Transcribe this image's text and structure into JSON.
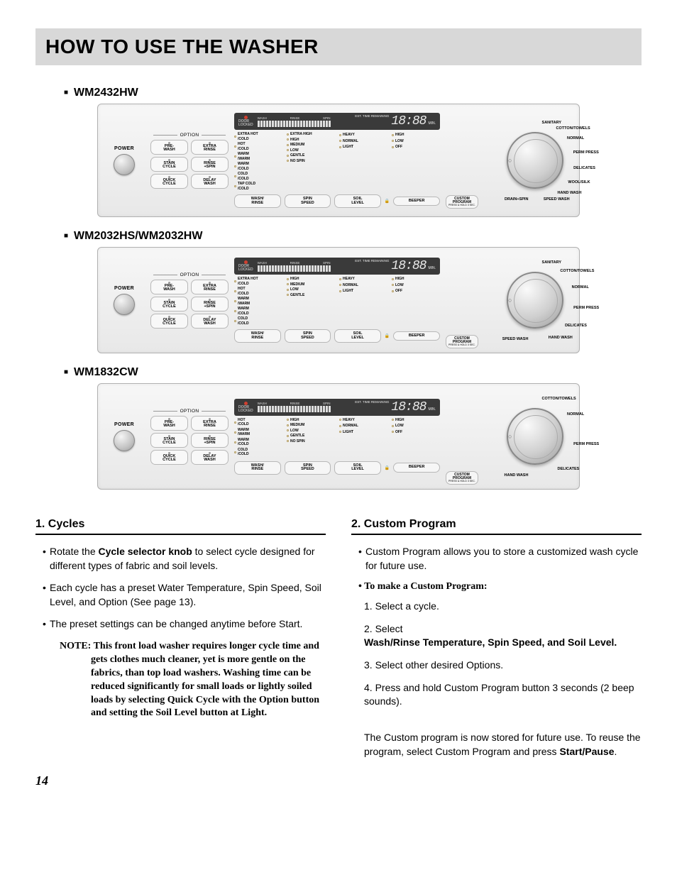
{
  "page": {
    "title": "HOW TO USE THE WASHER",
    "number": "14"
  },
  "models": [
    {
      "id": "m1",
      "name": "WM2432HW",
      "power": "POWER",
      "option_header": "OPTION",
      "options": [
        [
          "PRE-\nWASH",
          "EXTRA\nRINSE"
        ],
        [
          "STAIN\nCYCLE",
          "RINSE\n+SPIN"
        ],
        [
          "QUICK\nCYCLE",
          "DELAY\nWASH"
        ]
      ],
      "door_locked": "DOOR\nLOCKED",
      "progress": [
        "WASH",
        "RINSE",
        "SPIN"
      ],
      "display": {
        "est": "EST. TIME REMAINING",
        "digits": "18:88",
        "min": "MIN."
      },
      "temps": [
        "EXTRA HOT\n/COLD",
        "HOT\n/COLD",
        "WARM\n/WARM",
        "WARM\n/COLD",
        "COLD\n/COLD",
        "TAP COLD\n/COLD"
      ],
      "spin": [
        "EXTRA HIGH",
        "HIGH",
        "MEDIUM",
        "LOW",
        "GENTLE",
        "NO SPIN"
      ],
      "soil": [
        "",
        "HEAVY",
        "",
        "NORMAL",
        "",
        "LIGHT"
      ],
      "beep": [
        "",
        "HIGH",
        "",
        "LOW",
        "",
        "OFF"
      ],
      "btn_row": [
        "WASH/\nRINSE",
        "SPIN\nSPEED",
        "SOIL\nLEVEL",
        "BEEPER"
      ],
      "cycles": [
        "SANITARY",
        "COTTON/TOWELS",
        "NORMAL",
        "PERM PRESS",
        "DELICATES",
        "WOOL/SILK",
        "HAND WASH",
        "SPEED WASH",
        "DRAIN+SPIN"
      ],
      "custom": "CUSTOM\nPROGRAM"
    },
    {
      "id": "m2",
      "name": "WM2032HS/WM2032HW",
      "power": "POWER",
      "option_header": "OPTION",
      "options": [
        [
          "PRE-\nWASH",
          "EXTRA\nRINSE"
        ],
        [
          "STAIN\nCYCLE",
          "RINSE\n+SPIN"
        ],
        [
          "QUICK\nCYCLE",
          "DELAY\nWASH"
        ]
      ],
      "door_locked": "DOOR\nLOCKED",
      "progress": [
        "WASH",
        "RINSE",
        "SPIN"
      ],
      "display": {
        "est": "EST. TIME REMAINING",
        "digits": "18:88",
        "min": "MIN."
      },
      "temps": [
        "EXTRA HOT\n/COLD",
        "HOT\n/COLD",
        "WARM\n/WARM",
        "WARM\n/COLD",
        "COLD\n/COLD"
      ],
      "spin": [
        "HIGH",
        "MEDIUM",
        "LOW",
        "GENTLE",
        ""
      ],
      "soil": [
        "HEAVY",
        "",
        "NORMAL",
        "",
        "LIGHT"
      ],
      "beep": [
        "HIGH",
        "",
        "LOW",
        "",
        "OFF"
      ],
      "btn_row": [
        "WASH/\nRINSE",
        "SPIN\nSPEED",
        "SOIL\nLEVEL",
        "BEEPER"
      ],
      "cycles": [
        "SANITARY",
        "COTTON/TOWELS",
        "NORMAL",
        "PERM PRESS",
        "DELICATES",
        "HAND WASH",
        "SPEED WASH"
      ],
      "custom": "CUSTOM\nPROGRAM"
    },
    {
      "id": "m3",
      "name": "WM1832CW",
      "power": "POWER",
      "option_header": "OPTION",
      "options": [
        [
          "PRE-\nWASH",
          "EXTRA\nRINSE"
        ],
        [
          "STAIN\nCYCLE",
          "RINSE\n+SPIN"
        ],
        [
          "QUICK\nCYCLE",
          "DELAY\nWASH"
        ]
      ],
      "door_locked": "DOOR\nLOCKED",
      "progress": [
        "WASH",
        "RINSE",
        "SPIN"
      ],
      "display": {
        "est": "EST. TIME REMAINING",
        "digits": "18:88",
        "min": "MIN."
      },
      "temps": [
        "HOT\n/COLD",
        "WARM\n/WARM",
        "WARM\n/COLD",
        "COLD\n/COLD"
      ],
      "spin": [
        "HIGH",
        "MEDIUM",
        "LOW",
        "GENTLE",
        "NO SPIN"
      ],
      "soil": [
        "HEAVY",
        "",
        "NORMAL",
        "",
        "LIGHT"
      ],
      "beep": [
        "HIGH",
        "",
        "LOW",
        "",
        "OFF"
      ],
      "btn_row": [
        "WASH/\nRINSE",
        "SPIN\nSPEED",
        "SOIL\nLEVEL",
        "BEEPER"
      ],
      "cycles": [
        "COTTON/TOWELS",
        "NORMAL",
        "PERM PRESS",
        "DELICATES",
        "HAND WASH"
      ],
      "custom": "CUSTOM\nPROGRAM"
    }
  ],
  "sections": {
    "cycles": {
      "heading": "1. Cycles",
      "b1_pre": "Rotate the ",
      "b1_bold": "Cycle selector knob",
      "b1_post": "  to select cycle designed for different types of fabric and soil levels.",
      "b2": "Each cycle has a preset Water Temperature, Spin Speed, Soil Level, and Option (See page 13).",
      "b3": "The preset settings can be changed anytime before Start.",
      "note_label": "NOTE: ",
      "note": "This front load washer requires longer cycle time and gets clothes much cleaner, yet is more gentle on the fabrics, than top load washers. Washing time can be reduced significantly for small loads or lightly soiled loads by selecting Quick Cycle with the Option button and setting the Soil Level button at Light."
    },
    "custom": {
      "heading": "2. Custom Program",
      "intro": "Custom Program allows you to store a customized wash cycle for future use.",
      "make": "• To make a Custom Program:",
      "s1": "Select a cycle.",
      "s2_pre": "Select",
      "s2_bold": "Wash/Rinse Temperature, Spin Speed, and Soil Level.",
      "s3": "Select other desired Options.",
      "s4": "Press and hold Custom Program button 3 seconds (2 beep sounds).",
      "final_pre": "The Custom program is now stored for future use. To reuse the program, select Custom Program and press ",
      "final_bold": "Start/Pause",
      "final_post": "."
    }
  },
  "style": {
    "title_bg": "#d8d8d8",
    "panel_bg_from": "#f7f7f7",
    "panel_bg_to": "#e8e8e8",
    "display_bg": "#3a3a3a",
    "text_color": "#000000"
  }
}
